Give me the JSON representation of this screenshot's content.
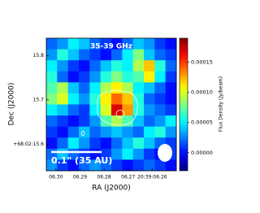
{
  "chart_data": {
    "type": "heatmap",
    "title": "35-39 GHz",
    "x_label": "RA (J2000)",
    "y_label": "Dec (J2000)",
    "colorbar_label": "Flux Density (Jy/beam)",
    "scale_bar_label": "0.1\" (35 AU)",
    "colormap": "jet",
    "xlim": [
      6.304,
      6.25
    ],
    "ylim": [
      15.54,
      15.839
    ],
    "xticks": [
      {
        "value": 6.3,
        "label": "06.30"
      },
      {
        "value": 6.29,
        "label": "06.29"
      },
      {
        "value": 6.28,
        "label": "06.28"
      },
      {
        "value": 6.27,
        "label": "06.27"
      },
      {
        "value": 6.26,
        "label": "20:39:06.26"
      }
    ],
    "yticks": [
      15.8,
      15.7,
      {
        "value": 15.6,
        "label": "+68:02:15.6"
      }
    ],
    "zlim": [
      -3e-05,
      0.00019
    ],
    "zticks": [
      {
        "value": 0,
        "label": "0.00000"
      },
      {
        "value": 5e-05,
        "label": "0.00005"
      },
      {
        "value": 0.0001,
        "label": "0.00010"
      },
      {
        "value": 0.00015,
        "label": "0.00015"
      }
    ],
    "z": [
      [
        2e-05,
        3e-05,
        5e-05,
        4e-05,
        2e-05,
        1e-05,
        0,
        2e-05,
        4e-05,
        3e-05,
        1e-05,
        0
      ],
      [
        3e-05,
        6e-05,
        4e-05,
        2e-05,
        1e-05,
        0,
        2e-05,
        5e-05,
        8e-05,
        4e-05,
        2e-05,
        1e-05
      ],
      [
        5e-05,
        3e-05,
        1e-05,
        0,
        2e-05,
        4e-05,
        6e-05,
        5e-05,
        9e-05,
        0.00012,
        6e-05,
        2e-05
      ],
      [
        6e-05,
        2e-05,
        0,
        1e-05,
        3e-05,
        6e-05,
        8e-05,
        6e-05,
        7e-05,
        0.00011,
        5e-05,
        1e-05
      ],
      [
        7e-05,
        9e-05,
        4e-05,
        2e-05,
        5e-05,
        9e-05,
        0.00011,
        9e-05,
        5e-05,
        4e-05,
        2e-05,
        0
      ],
      [
        8e-05,
        0.0001,
        5e-05,
        3e-05,
        6e-05,
        0.00011,
        0.00014,
        0.00012,
        6e-05,
        2e-05,
        1e-05,
        0
      ],
      [
        5e-05,
        4e-05,
        2e-05,
        1e-05,
        5e-05,
        0.0001,
        0.00017,
        0.00013,
        6e-05,
        3e-05,
        2e-05,
        1e-05
      ],
      [
        2e-05,
        1e-05,
        0,
        1e-05,
        3e-05,
        7e-05,
        9e-05,
        7e-05,
        4e-05,
        2e-05,
        3e-05,
        5e-05
      ],
      [
        1e-05,
        0,
        2e-05,
        4e-05,
        2e-05,
        3e-05,
        4e-05,
        3e-05,
        2e-05,
        5e-05,
        6e-05,
        3e-05
      ],
      [
        0,
        2e-05,
        5e-05,
        3e-05,
        1e-05,
        0,
        2e-05,
        4e-05,
        6e-05,
        4e-05,
        2e-05,
        1e-05
      ],
      [
        2e-05,
        4e-05,
        2e-05,
        1e-05,
        0,
        1e-05,
        3e-05,
        5e-05,
        3e-05,
        1e-05,
        0,
        1e-05
      ],
      [
        3e-05,
        1e-05,
        0,
        2e-05,
        3e-05,
        2e-05,
        1e-05,
        0,
        1e-05,
        2e-05,
        1e-05,
        0
      ]
    ]
  }
}
